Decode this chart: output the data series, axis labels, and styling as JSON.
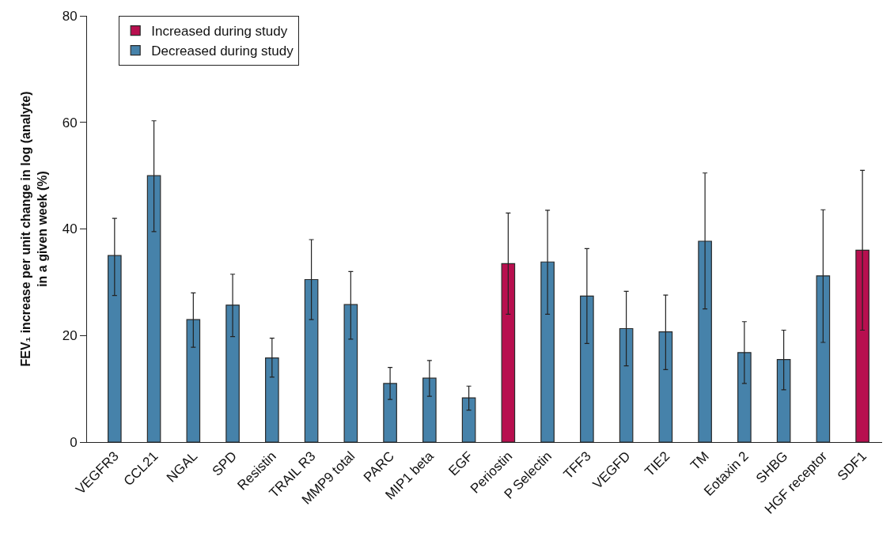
{
  "chart_data": {
    "type": "bar",
    "ylabel": "FEV₁ increase per unit change in log (analyte)\nin a given week (%)",
    "categories": [
      "VEGFR3",
      "CCL21",
      "NGAL",
      "SPD",
      "Resistin",
      "TRAIL R3",
      "MMP9 total",
      "PARC",
      "MIP1 beta",
      "EGF",
      "Periostin",
      "P Selectin",
      "TFF3",
      "VEGFD",
      "TIE2",
      "TM",
      "Eotaxin 2",
      "SHBG",
      "HGF receptor",
      "SDF1"
    ],
    "series": [
      {
        "name": "Increased during study",
        "color": "#b80f4f",
        "values": [
          null,
          null,
          null,
          null,
          null,
          null,
          null,
          null,
          null,
          null,
          33.5,
          null,
          null,
          null,
          null,
          null,
          null,
          null,
          null,
          36
        ],
        "errors": [
          null,
          null,
          null,
          null,
          null,
          null,
          null,
          null,
          null,
          null,
          [
            24,
            43
          ],
          null,
          null,
          null,
          null,
          null,
          null,
          null,
          null,
          [
            21,
            51
          ]
        ]
      },
      {
        "name": "Decreased during study",
        "color": "#4682aa",
        "values": [
          35,
          50,
          23,
          25.7,
          15.8,
          30.5,
          25.8,
          11,
          12,
          8.3,
          null,
          33.8,
          27.4,
          21.3,
          20.7,
          37.7,
          16.8,
          15.5,
          31.2,
          null
        ],
        "errors": [
          [
            27.5,
            42
          ],
          [
            39.5,
            60.3
          ],
          [
            17.8,
            28
          ],
          [
            19.8,
            31.5
          ],
          [
            12.2,
            19.5
          ],
          [
            23,
            38
          ],
          [
            19.3,
            32
          ],
          [
            8,
            14
          ],
          [
            8.6,
            15.3
          ],
          [
            6,
            10.5
          ],
          null,
          [
            24,
            43.5
          ],
          [
            18.5,
            36.3
          ],
          [
            14.3,
            28.3
          ],
          [
            13.6,
            27.6
          ],
          [
            25,
            50.5
          ],
          [
            11,
            22.6
          ],
          [
            9.8,
            21
          ],
          [
            18.7,
            43.6
          ],
          null
        ]
      }
    ],
    "ylim": [
      0,
      80
    ],
    "yticks": [
      0,
      20,
      40,
      60,
      80
    ],
    "legend": "top left"
  }
}
